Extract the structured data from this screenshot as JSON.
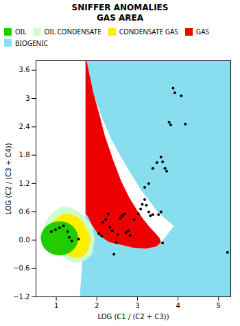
{
  "chart_data": {
    "type": "scatter",
    "title": "SNIFFER ANOMALIES\nGAS AREA",
    "xlabel": "LOG (C1 / (C2 + C3))",
    "ylabel": "LOG (C2 / (C3 + C4))",
    "xlim": [
      0.5,
      5.3
    ],
    "ylim": [
      -1.2,
      3.8
    ],
    "xticks": [
      1.0,
      2.0,
      3.0,
      4.0,
      5.0
    ],
    "yticks": [
      -1.2,
      -0.6,
      {
        "value": 0.0,
        "label": "0.0"
      },
      0.6,
      1.2,
      1.8,
      2.4,
      3.0,
      3.6
    ],
    "legend": "upper left",
    "series": [
      {
        "name": " OIL",
        "color": "#22cc00",
        "type": "ellipse",
        "cx": 1.08,
        "cy": 0.04,
        "rx": 0.46,
        "ry": 0.36
      },
      {
        "name": " OIL  CONDENSATE",
        "color": "#ccffcc",
        "type": "area",
        "polygons": [
          {
            "x": [
              0.58,
              0.72,
              0.92,
              1.12,
              1.32,
              1.52,
              1.72,
              1.88,
              1.95,
              1.88,
              1.72,
              1.52,
              1.32,
              1.12,
              0.92,
              0.72,
              0.58
            ],
            "y": [
              0.02,
              0.35,
              0.6,
              0.7,
              0.7,
              0.62,
              0.48,
              0.3,
              0.02,
              -0.3,
              -0.42,
              -0.48,
              -0.44,
              -0.32,
              -0.18,
              -0.06,
              0.02
            ]
          }
        ]
      },
      {
        "name": " CONDENSATE  GAS",
        "color": "#ffee00",
        "type": "area",
        "polygons": [
          {
            "x": [
              0.72,
              0.92,
              1.12,
              1.32,
              1.52,
              1.68,
              1.78,
              1.85,
              1.78,
              1.68,
              1.52,
              1.32,
              1.12,
              0.92,
              0.72
            ],
            "y": [
              0.06,
              0.4,
              0.54,
              0.56,
              0.5,
              0.36,
              0.18,
              0.02,
              -0.22,
              -0.34,
              -0.38,
              -0.34,
              -0.22,
              -0.1,
              0.06
            ]
          }
        ]
      },
      {
        "name": " GAS",
        "color": "#ee0000",
        "type": "area",
        "polygons": [
          {
            "x": [
              1.72,
              1.72,
              1.75,
              1.82,
              1.92,
              2.05,
              2.2,
              2.4,
              2.6,
              2.8,
              3.0,
              3.15,
              3.3,
              3.45,
              3.55,
              3.58,
              3.45,
              3.2,
              2.9,
              2.6,
              2.3,
              2.05,
              1.88,
              1.78,
              1.72
            ],
            "y": [
              0.56,
              3.8,
              3.8,
              3.5,
              3.1,
              2.7,
              2.2,
              1.7,
              1.25,
              0.9,
              0.62,
              0.44,
              0.28,
              0.14,
              0.04,
              -0.05,
              -0.14,
              -0.18,
              -0.16,
              -0.1,
              -0.04,
              0.1,
              0.32,
              0.5,
              0.56
            ]
          }
        ]
      },
      {
        "name": " BIOGENIC",
        "color": "#88ddee",
        "type": "area",
        "polygons": [
          {
            "x": [
              1.72,
              1.75,
              1.82,
              1.92,
              2.1,
              2.35,
              2.7,
              3.1,
              3.5,
              3.9,
              4.3,
              4.8,
              5.3,
              5.3,
              1.72
            ],
            "y": [
              3.8,
              3.8,
              3.5,
              3.1,
              2.65,
              2.15,
              1.6,
              1.05,
              0.6,
              0.3,
              0.1,
              -0.08,
              -0.28,
              3.8,
              3.8
            ]
          },
          {
            "x": [
              1.58,
              1.72,
              1.78,
              1.88,
              2.05,
              2.3,
              2.6,
              2.9,
              3.2,
              3.45,
              3.58,
              3.9,
              4.3,
              4.8,
              5.3,
              5.3,
              1.58
            ],
            "y": [
              -1.2,
              0.56,
              0.5,
              0.32,
              0.1,
              -0.04,
              -0.1,
              -0.16,
              -0.18,
              -0.14,
              -0.05,
              0.3,
              0.1,
              -0.08,
              -0.28,
              -1.2,
              -1.2
            ]
          }
        ]
      }
    ],
    "points": {
      "color": "#000000",
      "x": [
        0.88,
        0.98,
        1.08,
        1.18,
        1.28,
        1.32,
        1.38,
        1.55,
        2.05,
        2.12,
        2.15,
        2.22,
        2.28,
        2.32,
        2.38,
        2.42,
        2.48,
        2.52,
        2.58,
        2.62,
        2.68,
        2.72,
        2.78,
        2.82,
        2.92,
        3.02,
        3.08,
        3.12,
        3.18,
        3.22,
        3.28,
        3.32,
        3.38,
        3.52,
        3.58,
        3.62,
        3.18,
        3.28,
        3.38,
        3.48,
        3.58,
        3.62,
        3.68,
        3.72,
        3.78,
        3.82,
        3.88,
        3.92,
        4.08,
        4.18,
        5.22
      ],
      "y": [
        0.18,
        0.22,
        0.26,
        0.3,
        0.18,
        0.06,
        -0.02,
        0.02,
        0.14,
        0.09,
        0.38,
        0.44,
        0.56,
        0.28,
        0.2,
        -0.3,
        -0.05,
        0.12,
        0.46,
        0.52,
        0.56,
        0.16,
        0.2,
        0.1,
        0.44,
        0.56,
        0.66,
        0.76,
        0.86,
        0.74,
        0.6,
        0.52,
        0.54,
        0.54,
        0.6,
        -0.06,
        1.12,
        1.2,
        1.52,
        1.64,
        1.76,
        1.66,
        1.52,
        1.46,
        2.5,
        2.44,
        3.22,
        3.12,
        3.06,
        2.46,
        -0.26
      ]
    }
  }
}
